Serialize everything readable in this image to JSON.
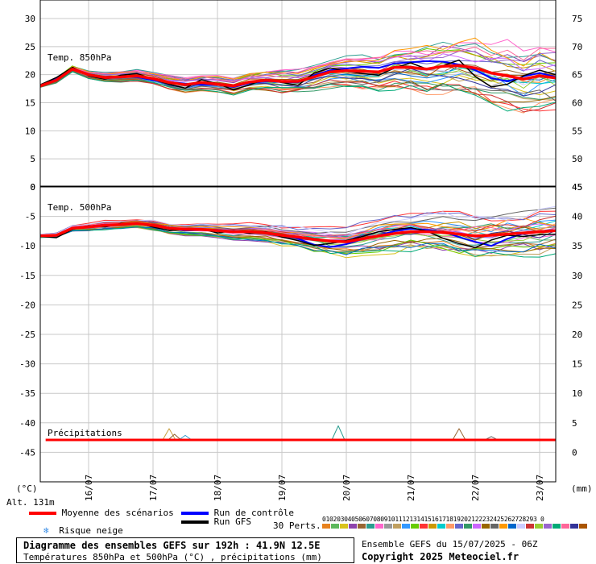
{
  "chart_data": {
    "type": "line",
    "title": "Diagramme des ensembles GEFS sur 192h : 41.9N 12.5E",
    "subtitle": "Températures 850hPa et 500hPa (°C) , précipitations (mm)",
    "run_info": "Ensemble GEFS du 15/07/2025 - 06Z",
    "copyright": "Copyright 2025 Meteociel.fr",
    "altitude": "Alt. 131m",
    "left_unit": "(°C)",
    "right_unit": "(mm)",
    "dates": [
      "16/07",
      "17/07",
      "18/07",
      "19/07",
      "20/07",
      "21/07",
      "22/07",
      "23/07"
    ],
    "grid": true,
    "panels": {
      "t850": {
        "label": "Temp. 850hPa",
        "ylim": [
          0,
          30
        ],
        "left_ticks": [
          "30",
          "25",
          "20",
          "15",
          "10",
          "5",
          "0"
        ],
        "right_ticks": [
          "75",
          "70",
          "65",
          "60",
          "55",
          "50",
          "45"
        ],
        "x_hours": [
          0,
          6,
          12,
          18,
          24,
          30,
          36,
          42,
          48,
          54,
          60,
          66,
          72,
          78,
          84,
          90,
          96,
          102,
          108,
          114,
          120,
          126,
          132,
          138,
          144,
          150,
          156,
          162,
          168,
          174,
          180,
          186,
          192
        ],
        "mean": [
          18,
          19,
          21,
          20,
          19.5,
          19.6,
          19.8,
          19.3,
          18.6,
          18.2,
          18.6,
          18.3,
          18,
          18.7,
          19,
          18.8,
          18.8,
          19.6,
          20.5,
          20.7,
          20.6,
          20.5,
          21.3,
          21.3,
          21,
          21.5,
          21.6,
          21.2,
          20.3,
          19.8,
          19.2,
          19.8,
          19.4
        ],
        "gfs": [
          18.2,
          19.5,
          21.3,
          19.8,
          19.2,
          19.9,
          20.2,
          19.2,
          18.3,
          17.6,
          19.1,
          18.4,
          17.3,
          18.2,
          19.2,
          18.6,
          18.1,
          20.3,
          21.2,
          20.6,
          20.2,
          19.9,
          21.2,
          22.1,
          21,
          21.6,
          22.6,
          19.7,
          17.8,
          18.3,
          19.8,
          20.8,
          20
        ],
        "control": [
          18,
          19.2,
          21,
          20.1,
          19.6,
          19.7,
          19.6,
          19,
          18.7,
          18.4,
          18.2,
          18.2,
          17.8,
          18.5,
          18.8,
          18.7,
          18.6,
          19.9,
          20.8,
          21.1,
          21.4,
          21.2,
          22,
          22.2,
          22.4,
          22.3,
          21.8,
          20.8,
          19.4,
          18.8,
          19.7,
          20.3,
          19.6
        ],
        "spread_up": [
          0.3,
          0.6,
          0.7,
          0.8,
          1,
          1.1,
          1.2,
          1.3,
          1.4,
          1.4,
          1.5,
          1.7,
          1.8,
          1.9,
          2.1,
          2.3,
          2.5,
          2.7,
          2.9,
          3.2,
          3.5,
          3.8,
          4,
          4.3,
          4.8,
          5.3,
          5.8,
          6.2,
          6.6,
          6.9,
          7.1,
          7.2,
          7.4
        ],
        "spread_down": [
          0.3,
          0.5,
          0.6,
          0.8,
          0.9,
          1,
          1.1,
          1.2,
          1.3,
          1.4,
          1.5,
          1.6,
          1.7,
          1.8,
          2,
          2.2,
          2.4,
          2.7,
          3,
          3.3,
          3.6,
          3.9,
          4.2,
          4.5,
          4.9,
          5.3,
          5.6,
          5.9,
          6.1,
          6.3,
          6.4,
          6.5,
          6.6
        ]
      },
      "t500": {
        "label": "Temp. 500hPa",
        "ylim": [
          -50,
          0
        ],
        "left_ticks": [
          "0",
          "-5",
          "-10",
          "-15",
          "-20",
          "-25",
          "-30",
          "-35",
          "-40",
          "-45"
        ],
        "right_ticks": [
          "45",
          "40",
          "35",
          "30",
          "25",
          "20",
          "15",
          "10",
          "5",
          "0"
        ],
        "x_hours": [
          0,
          6,
          12,
          18,
          24,
          30,
          36,
          42,
          48,
          54,
          60,
          66,
          72,
          78,
          84,
          90,
          96,
          102,
          108,
          114,
          120,
          126,
          132,
          138,
          144,
          150,
          156,
          162,
          168,
          174,
          180,
          186,
          192
        ],
        "mean": [
          -8.3,
          -8.2,
          -7,
          -6.8,
          -6.5,
          -6.4,
          -6.2,
          -6.5,
          -7,
          -7.2,
          -7.2,
          -7.4,
          -7.6,
          -7.6,
          -7.8,
          -8.2,
          -8.5,
          -8.9,
          -9.2,
          -9.3,
          -8.8,
          -8.3,
          -7.9,
          -7.6,
          -7.6,
          -7.7,
          -8,
          -8.3,
          -8.2,
          -8,
          -7.8,
          -7.6,
          -7.4
        ],
        "gfs": [
          -8.4,
          -8.6,
          -7.2,
          -6.6,
          -6.8,
          -6.2,
          -6.1,
          -6.8,
          -7.4,
          -7.2,
          -7.1,
          -7.8,
          -7.4,
          -7.9,
          -7.6,
          -8.5,
          -9.1,
          -9.9,
          -9.6,
          -9.1,
          -8.4,
          -7.6,
          -7.2,
          -6.9,
          -7.5,
          -8.7,
          -9.6,
          -10.3,
          -9,
          -8.2,
          -8.4,
          -8.1,
          -8
        ],
        "control": [
          -8.2,
          -8.3,
          -6.9,
          -6.7,
          -6.4,
          -6.5,
          -6.3,
          -6.6,
          -7.1,
          -7.4,
          -7.3,
          -7.3,
          -7.7,
          -7.5,
          -7.8,
          -8.1,
          -8.8,
          -9.8,
          -10.2,
          -9.7,
          -8.9,
          -8.2,
          -7.5,
          -7.1,
          -7.3,
          -7.6,
          -8.5,
          -9.3,
          -10,
          -8.8,
          -7.9,
          -7.5,
          -7.3
        ],
        "spread_up": [
          0.3,
          0.4,
          0.6,
          0.7,
          0.8,
          0.8,
          0.9,
          1,
          1.1,
          1.1,
          1.2,
          1.3,
          1.4,
          1.5,
          1.6,
          1.8,
          2,
          2.2,
          2.4,
          2.6,
          2.8,
          3,
          3.2,
          3.4,
          3.6,
          3.8,
          4,
          4.1,
          4.2,
          4.3,
          4.4,
          4.4,
          4.5
        ],
        "spread_down": [
          0.3,
          0.4,
          0.6,
          0.7,
          0.8,
          0.8,
          0.9,
          1,
          1.1,
          1.2,
          1.2,
          1.3,
          1.5,
          1.6,
          1.7,
          1.9,
          2.1,
          2.4,
          2.6,
          2.8,
          2.9,
          3,
          3.1,
          3.2,
          3.4,
          3.5,
          3.7,
          3.8,
          3.9,
          4,
          4.1,
          4.1,
          4.2
        ]
      },
      "precip": {
        "label": "Précipitations",
        "mean_mm": 0,
        "spikes": [
          {
            "hour": 48,
            "mm": 2.0
          },
          {
            "hour": 50,
            "mm": 1.0
          },
          {
            "hour": 54,
            "mm": 0.8
          },
          {
            "hour": 111,
            "mm": 2.5
          },
          {
            "hour": 156,
            "mm": 2.0
          },
          {
            "hour": 168,
            "mm": 0.6
          }
        ]
      }
    },
    "members": 30
  },
  "legend": {
    "mean": "Moyenne des scénarios",
    "control": "Run de contrôle",
    "gfs": "Run GFS",
    "snow": "Risque neige",
    "perts": "30 Perts.",
    "perts_numbers": "01020304050607080910111213141516171819202122232425262728293 0",
    "mean_color": "#ff0000",
    "control_color": "#0000ff",
    "gfs_color": "#000000",
    "member_colors": [
      "#e8821e",
      "#5cb85c",
      "#d9c31c",
      "#8e44ad",
      "#996633",
      "#2a9d8f",
      "#ff66cc",
      "#999999",
      "#c0a060",
      "#3399ff",
      "#66cc00",
      "#ff3333",
      "#cc9900",
      "#00cccc",
      "#ff9966",
      "#6666cc",
      "#339966",
      "#cc66ff",
      "#996600",
      "#666666",
      "#ff9900",
      "#0066cc",
      "#ccccff",
      "#cc3333",
      "#99cc33",
      "#9966cc",
      "#00aa77",
      "#ff6699",
      "#333399",
      "#aa5500"
    ]
  }
}
